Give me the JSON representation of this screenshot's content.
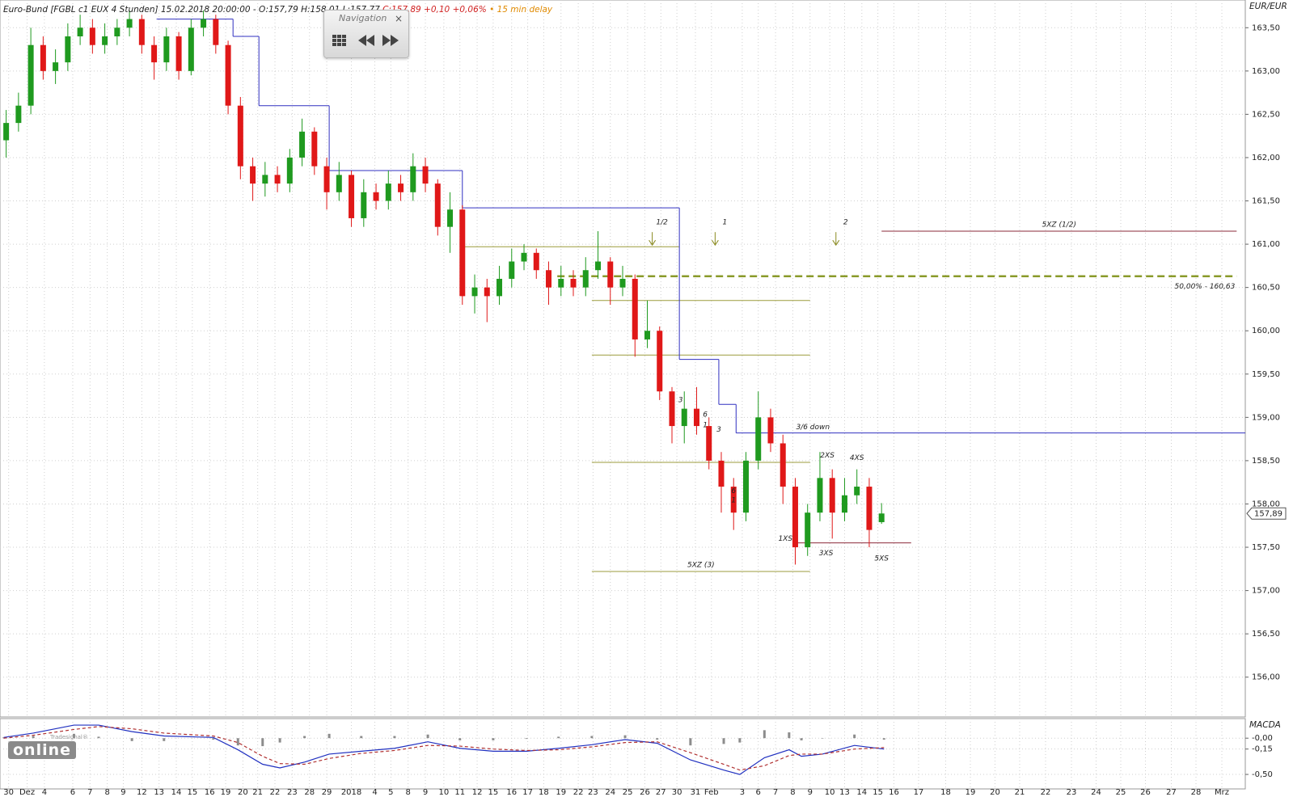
{
  "navigation": {
    "title": "Navigation",
    "close": "×"
  },
  "logo": {
    "brand": "Tradesignal®",
    "name": "online"
  },
  "chart_data": [
    {
      "type": "candlestick",
      "title": "Euro-Bund [FGBL c1 EUX 4 Stunden] 15.02.2018 20:00:00 - O:157,79 H:158,01 L:157,77",
      "title_change": "C:157,89 +0,10 +0,06%",
      "title_delay": "• 15 min delay",
      "unit_label": "EUR/EUR",
      "x": [
        0.5,
        1.5,
        2.5,
        3.5,
        4.5,
        5.5,
        6.5,
        7.5,
        8.5,
        9.5,
        10.5,
        11.5,
        12.5,
        13.5,
        14.5,
        15.5,
        16.5,
        17.5,
        18.5,
        19.5,
        20.5,
        21.5,
        22.5,
        23.5,
        24.5,
        25.5,
        26.5,
        27.5,
        28.5,
        29.5,
        30.5,
        31.5,
        32.5,
        33.5,
        34.5,
        35.5,
        36.5,
        37.5,
        38.5,
        39.5,
        40.5,
        41.5,
        42.5,
        43.5,
        44.5,
        45.5,
        46.5,
        47.5,
        48.5,
        49.5,
        50.5,
        51.5,
        52.5,
        53.5,
        54.5,
        55.5,
        56.5,
        57.5,
        58.5,
        59.5,
        60.5,
        61.5,
        62.5,
        63.5,
        64.5,
        65.5,
        66.5,
        67.5,
        68.5,
        69.5,
        70.5,
        71.5
      ],
      "open": [
        162.2,
        162.4,
        162.6,
        163.3,
        163.0,
        163.1,
        163.4,
        163.5,
        163.3,
        163.4,
        163.5,
        163.6,
        163.3,
        163.1,
        163.4,
        163.0,
        163.5,
        163.6,
        163.3,
        162.6,
        161.9,
        161.7,
        161.8,
        161.7,
        162.0,
        162.3,
        161.9,
        161.6,
        161.8,
        161.3,
        161.6,
        161.5,
        161.7,
        161.6,
        161.9,
        161.7,
        161.2,
        161.4,
        160.4,
        160.5,
        160.4,
        160.6,
        160.8,
        160.9,
        160.7,
        160.5,
        160.6,
        160.5,
        160.7,
        160.8,
        160.5,
        160.6,
        159.9,
        160.0,
        159.3,
        158.9,
        159.1,
        158.9,
        158.5,
        158.2,
        157.9,
        158.5,
        159.0,
        158.7,
        158.2,
        157.5,
        157.9,
        158.3,
        157.9,
        158.1,
        158.2,
        157.79
      ],
      "high": [
        162.55,
        162.75,
        163.5,
        163.4,
        163.25,
        163.55,
        163.65,
        163.6,
        163.55,
        163.6,
        163.7,
        163.65,
        163.4,
        163.5,
        163.45,
        163.6,
        163.7,
        163.65,
        163.35,
        162.7,
        162.0,
        161.95,
        161.9,
        162.1,
        162.45,
        162.35,
        162.0,
        161.95,
        161.85,
        161.75,
        161.7,
        161.85,
        161.8,
        162.05,
        162.0,
        161.75,
        161.6,
        161.45,
        160.65,
        160.6,
        160.75,
        160.95,
        161.0,
        160.95,
        160.8,
        160.75,
        160.7,
        160.85,
        161.15,
        160.85,
        160.75,
        160.65,
        160.35,
        160.05,
        159.35,
        159.3,
        159.35,
        159.0,
        158.6,
        158.3,
        158.6,
        159.3,
        159.1,
        158.8,
        158.3,
        158.0,
        158.6,
        158.4,
        158.3,
        158.4,
        158.3,
        158.01
      ],
      "low": [
        162.0,
        162.3,
        162.5,
        162.9,
        162.85,
        163.0,
        163.3,
        163.2,
        163.2,
        163.3,
        163.4,
        163.2,
        162.9,
        163.0,
        162.9,
        162.95,
        163.4,
        163.2,
        162.5,
        161.75,
        161.5,
        161.55,
        161.6,
        161.6,
        161.9,
        161.8,
        161.4,
        161.5,
        161.2,
        161.2,
        161.4,
        161.4,
        161.5,
        161.5,
        161.6,
        161.1,
        160.9,
        160.3,
        160.2,
        160.1,
        160.3,
        160.5,
        160.7,
        160.6,
        160.3,
        160.4,
        160.4,
        160.4,
        160.6,
        160.3,
        160.4,
        159.7,
        159.8,
        159.2,
        158.7,
        158.7,
        158.8,
        158.4,
        157.9,
        157.7,
        157.8,
        158.4,
        158.6,
        158.0,
        157.3,
        157.4,
        157.8,
        157.6,
        157.8,
        158.0,
        157.5,
        157.77
      ],
      "close": [
        162.4,
        162.6,
        163.3,
        163.0,
        163.1,
        163.4,
        163.5,
        163.3,
        163.4,
        163.5,
        163.6,
        163.3,
        163.1,
        163.4,
        163.0,
        163.5,
        163.6,
        163.3,
        162.6,
        161.9,
        161.7,
        161.8,
        161.7,
        162.0,
        162.3,
        161.9,
        161.6,
        161.8,
        161.3,
        161.6,
        161.5,
        161.7,
        161.6,
        161.9,
        161.7,
        161.2,
        161.4,
        160.4,
        160.5,
        160.4,
        160.6,
        160.8,
        160.9,
        160.7,
        160.5,
        160.6,
        160.5,
        160.7,
        160.8,
        160.5,
        160.6,
        159.9,
        160.0,
        159.3,
        158.9,
        159.1,
        158.9,
        158.5,
        158.2,
        157.9,
        158.5,
        159.0,
        158.7,
        158.2,
        157.5,
        157.9,
        158.3,
        157.9,
        158.1,
        158.2,
        157.7,
        157.89
      ],
      "up_color": "#1f9a1f",
      "down_color": "#e01818",
      "xlim": [
        0,
        101
      ],
      "xticks": [
        {
          "value": 0.7,
          "label": "30"
        },
        {
          "value": 2.2,
          "label": "Dez"
        },
        {
          "value": 3.6,
          "label": "4"
        },
        {
          "value": 5.9,
          "label": "6"
        },
        {
          "value": 7.3,
          "label": "7"
        },
        {
          "value": 8.7,
          "label": "8"
        },
        {
          "value": 10,
          "label": "9"
        },
        {
          "value": 11.5,
          "label": "12"
        },
        {
          "value": 12.9,
          "label": "13"
        },
        {
          "value": 14.3,
          "label": "14"
        },
        {
          "value": 15.6,
          "label": "15"
        },
        {
          "value": 17,
          "label": "16"
        },
        {
          "value": 18.3,
          "label": "19"
        },
        {
          "value": 19.7,
          "label": "20"
        },
        {
          "value": 20.9,
          "label": "21"
        },
        {
          "value": 22.3,
          "label": "22"
        },
        {
          "value": 23.7,
          "label": "23"
        },
        {
          "value": 25.1,
          "label": "28"
        },
        {
          "value": 26.5,
          "label": "29"
        },
        {
          "value": 28.5,
          "label": "2018"
        },
        {
          "value": 30.4,
          "label": "4"
        },
        {
          "value": 31.7,
          "label": "5"
        },
        {
          "value": 33.1,
          "label": "8"
        },
        {
          "value": 34.5,
          "label": "9"
        },
        {
          "value": 36,
          "label": "10"
        },
        {
          "value": 37.3,
          "label": "11"
        },
        {
          "value": 38.7,
          "label": "12"
        },
        {
          "value": 40,
          "label": "15"
        },
        {
          "value": 41.5,
          "label": "16"
        },
        {
          "value": 42.8,
          "label": "17"
        },
        {
          "value": 44.1,
          "label": "18"
        },
        {
          "value": 45.5,
          "label": "19"
        },
        {
          "value": 46.9,
          "label": "22"
        },
        {
          "value": 48.1,
          "label": "23"
        },
        {
          "value": 49.5,
          "label": "24"
        },
        {
          "value": 50.9,
          "label": "25"
        },
        {
          "value": 52.3,
          "label": "26"
        },
        {
          "value": 53.6,
          "label": "27"
        },
        {
          "value": 54.9,
          "label": "30"
        },
        {
          "value": 56.4,
          "label": "31"
        },
        {
          "value": 57.7,
          "label": "Feb"
        },
        {
          "value": 60.2,
          "label": "3"
        },
        {
          "value": 61.5,
          "label": "6"
        },
        {
          "value": 62.9,
          "label": "7"
        },
        {
          "value": 64.3,
          "label": "8"
        },
        {
          "value": 65.7,
          "label": "9"
        },
        {
          "value": 67.3,
          "label": "10"
        },
        {
          "value": 68.5,
          "label": "13"
        },
        {
          "value": 69.9,
          "label": "14"
        },
        {
          "value": 71.2,
          "label": "15"
        },
        {
          "value": 72.5,
          "label": "16"
        },
        {
          "value": 74.5,
          "label": "17"
        },
        {
          "value": 76.7,
          "label": "18"
        },
        {
          "value": 78.7,
          "label": "19"
        },
        {
          "value": 80.7,
          "label": "20"
        },
        {
          "value": 82.7,
          "label": "21"
        },
        {
          "value": 84.8,
          "label": "22"
        },
        {
          "value": 86.9,
          "label": "23"
        },
        {
          "value": 88.9,
          "label": "24"
        },
        {
          "value": 90.9,
          "label": "25"
        },
        {
          "value": 92.9,
          "label": "26"
        },
        {
          "value": 95,
          "label": "27"
        },
        {
          "value": 97,
          "label": "28"
        },
        {
          "value": 99.1,
          "label": "Mrz"
        }
      ],
      "ylim": [
        155.54,
        163.82
      ],
      "yticks": [
        {
          "value": 156,
          "label": "156,00"
        },
        {
          "value": 156.5,
          "label": "156,50"
        },
        {
          "value": 157,
          "label": "157,00"
        },
        {
          "value": 157.5,
          "label": "157,50"
        },
        {
          "value": 158,
          "label": "158,00"
        },
        {
          "value": 158.5,
          "label": "158,50"
        },
        {
          "value": 159,
          "label": "159,00"
        },
        {
          "value": 159.5,
          "label": "159,50"
        },
        {
          "value": 160,
          "label": "160,00"
        },
        {
          "value": 160.5,
          "label": "160,50"
        },
        {
          "value": 161,
          "label": "161,00"
        },
        {
          "value": 161.5,
          "label": "161,50"
        },
        {
          "value": 162,
          "label": "162,00"
        },
        {
          "value": 162.5,
          "label": "162,50"
        },
        {
          "value": 163,
          "label": "163,00"
        },
        {
          "value": 163.5,
          "label": "163,50"
        }
      ],
      "grid": true,
      "last_price": {
        "value": 157.89,
        "label": "157,89"
      },
      "step_line": {
        "bins": [
          12.7,
          18.9,
          21,
          26.7,
          37.5,
          55.1,
          58.3,
          59.7,
          101
        ],
        "values": [
          163.6,
          163.4,
          162.6,
          161.85,
          161.42,
          159.67,
          159.15,
          158.82
        ],
        "color": "#3030c0",
        "label": "3/6 down"
      },
      "hlines": [
        {
          "y": 160.97,
          "x": [
            37.5,
            55.1
          ],
          "color": "#9b9b3c"
        },
        {
          "y": 160.35,
          "x": [
            48,
            65.7
          ],
          "color": "#9b9b3c"
        },
        {
          "y": 159.72,
          "x": [
            48,
            65.7
          ],
          "color": "#9b9b3c"
        },
        {
          "y": 158.48,
          "x": [
            48,
            65.7
          ],
          "color": "#9b9b3c"
        },
        {
          "y": 157.22,
          "x": [
            48,
            65.7
          ],
          "color": "#9b9b3c",
          "label": "5XZ (3)"
        },
        {
          "y": 160.63,
          "x": [
            45.2,
            100.3
          ],
          "color": "#8a9a2a",
          "dashed": true,
          "label": "50,00% - 160,63"
        },
        {
          "y": 161.15,
          "x": [
            71.5,
            100.3
          ],
          "color": "#8b2a3a",
          "label": "5XZ (1/2)"
        },
        {
          "y": 157.55,
          "x": [
            64.3,
            73.9
          ],
          "color": "#8b2a3a"
        }
      ],
      "arrows": {
        "color": "#8a8a20",
        "items": [
          {
            "x": 52.9,
            "y": 160.99,
            "label": "1/2"
          },
          {
            "x": 58,
            "y": 160.99,
            "label": "1"
          },
          {
            "x": 67.8,
            "y": 160.99,
            "label": "2"
          }
        ]
      },
      "annotations": [
        {
          "x": 55.2,
          "y": 159.2,
          "text": "3",
          "color": "#2020a0"
        },
        {
          "x": 57.2,
          "y": 159.03,
          "text": "6",
          "color": "#2020a0"
        },
        {
          "x": 57.2,
          "y": 158.91,
          "text": "1",
          "color": "#2020a0"
        },
        {
          "x": 58.3,
          "y": 158.86,
          "text": "3",
          "color": "#2020a0"
        },
        {
          "x": 59.5,
          "y": 158.15,
          "text": "6",
          "color": "#2020a0"
        },
        {
          "x": 59.5,
          "y": 158.04,
          "text": "1",
          "color": "#2020a0"
        },
        {
          "x": 67.1,
          "y": 158.56,
          "text": "2XS",
          "color": "#8b1a1a"
        },
        {
          "x": 69.5,
          "y": 158.53,
          "text": "4XS",
          "color": "#8b1a1a"
        },
        {
          "x": 63.7,
          "y": 157.6,
          "text": "1XS",
          "color": "#8b1a1a"
        },
        {
          "x": 67,
          "y": 157.43,
          "text": "3XS",
          "color": "#8b1a1a"
        },
        {
          "x": 71.5,
          "y": 157.37,
          "text": "5XS",
          "color": "#8b1a1a"
        }
      ]
    },
    {
      "type": "line",
      "title": "MACDA",
      "xlim": [
        0,
        101
      ],
      "x": [
        0.3,
        2.7,
        6,
        8,
        10.7,
        13.3,
        17.3,
        19.3,
        21.3,
        22.7,
        24.7,
        26.7,
        29.3,
        32,
        34.7,
        37.3,
        40,
        42.7,
        45.3,
        48,
        50.7,
        53.3,
        56,
        58.7,
        60,
        62,
        64,
        65,
        66.7,
        69.3,
        71.7
      ],
      "series": [
        {
          "color": "#2030c0",
          "values": [
            0.01,
            0.07,
            0.18,
            0.18,
            0.09,
            0.03,
            0.01,
            -0.16,
            -0.36,
            -0.41,
            -0.33,
            -0.22,
            -0.18,
            -0.14,
            -0.05,
            -0.14,
            -0.18,
            -0.18,
            -0.14,
            -0.09,
            -0.02,
            -0.07,
            -0.3,
            -0.44,
            -0.5,
            -0.27,
            -0.16,
            -0.25,
            -0.22,
            -0.1,
            -0.15
          ]
        },
        {
          "color": "#b03030",
          "dashed": true,
          "values": [
            0,
            0.04,
            0.12,
            0.16,
            0.13,
            0.07,
            0.03,
            -0.06,
            -0.25,
            -0.35,
            -0.36,
            -0.28,
            -0.21,
            -0.17,
            -0.1,
            -0.11,
            -0.15,
            -0.17,
            -0.16,
            -0.12,
            -0.06,
            -0.05,
            -0.2,
            -0.36,
            -0.44,
            -0.38,
            -0.24,
            -0.22,
            -0.22,
            -0.15,
            -0.13
          ]
        }
      ],
      "histogram": {
        "color": "#8c8c8c",
        "values": [
          0.01,
          0.03,
          0.06,
          0.02,
          -0.04,
          -0.04,
          -0.02,
          -0.1,
          -0.11,
          -0.06,
          0.03,
          0.06,
          0.03,
          0.03,
          0.05,
          -0.03,
          -0.03,
          -0.01,
          0.02,
          0.03,
          0.04,
          -0.02,
          -0.1,
          -0.08,
          -0.06,
          0.11,
          0.08,
          -0.03,
          0,
          0.05,
          -0.02
        ]
      },
      "ylim": [
        -0.7,
        0.27
      ],
      "yticks": [
        {
          "value": 0,
          "label": "-0,00"
        },
        {
          "value": -0.15,
          "label": "-0,15"
        },
        {
          "value": -0.5,
          "label": "-0,50"
        }
      ],
      "grid": true
    }
  ]
}
